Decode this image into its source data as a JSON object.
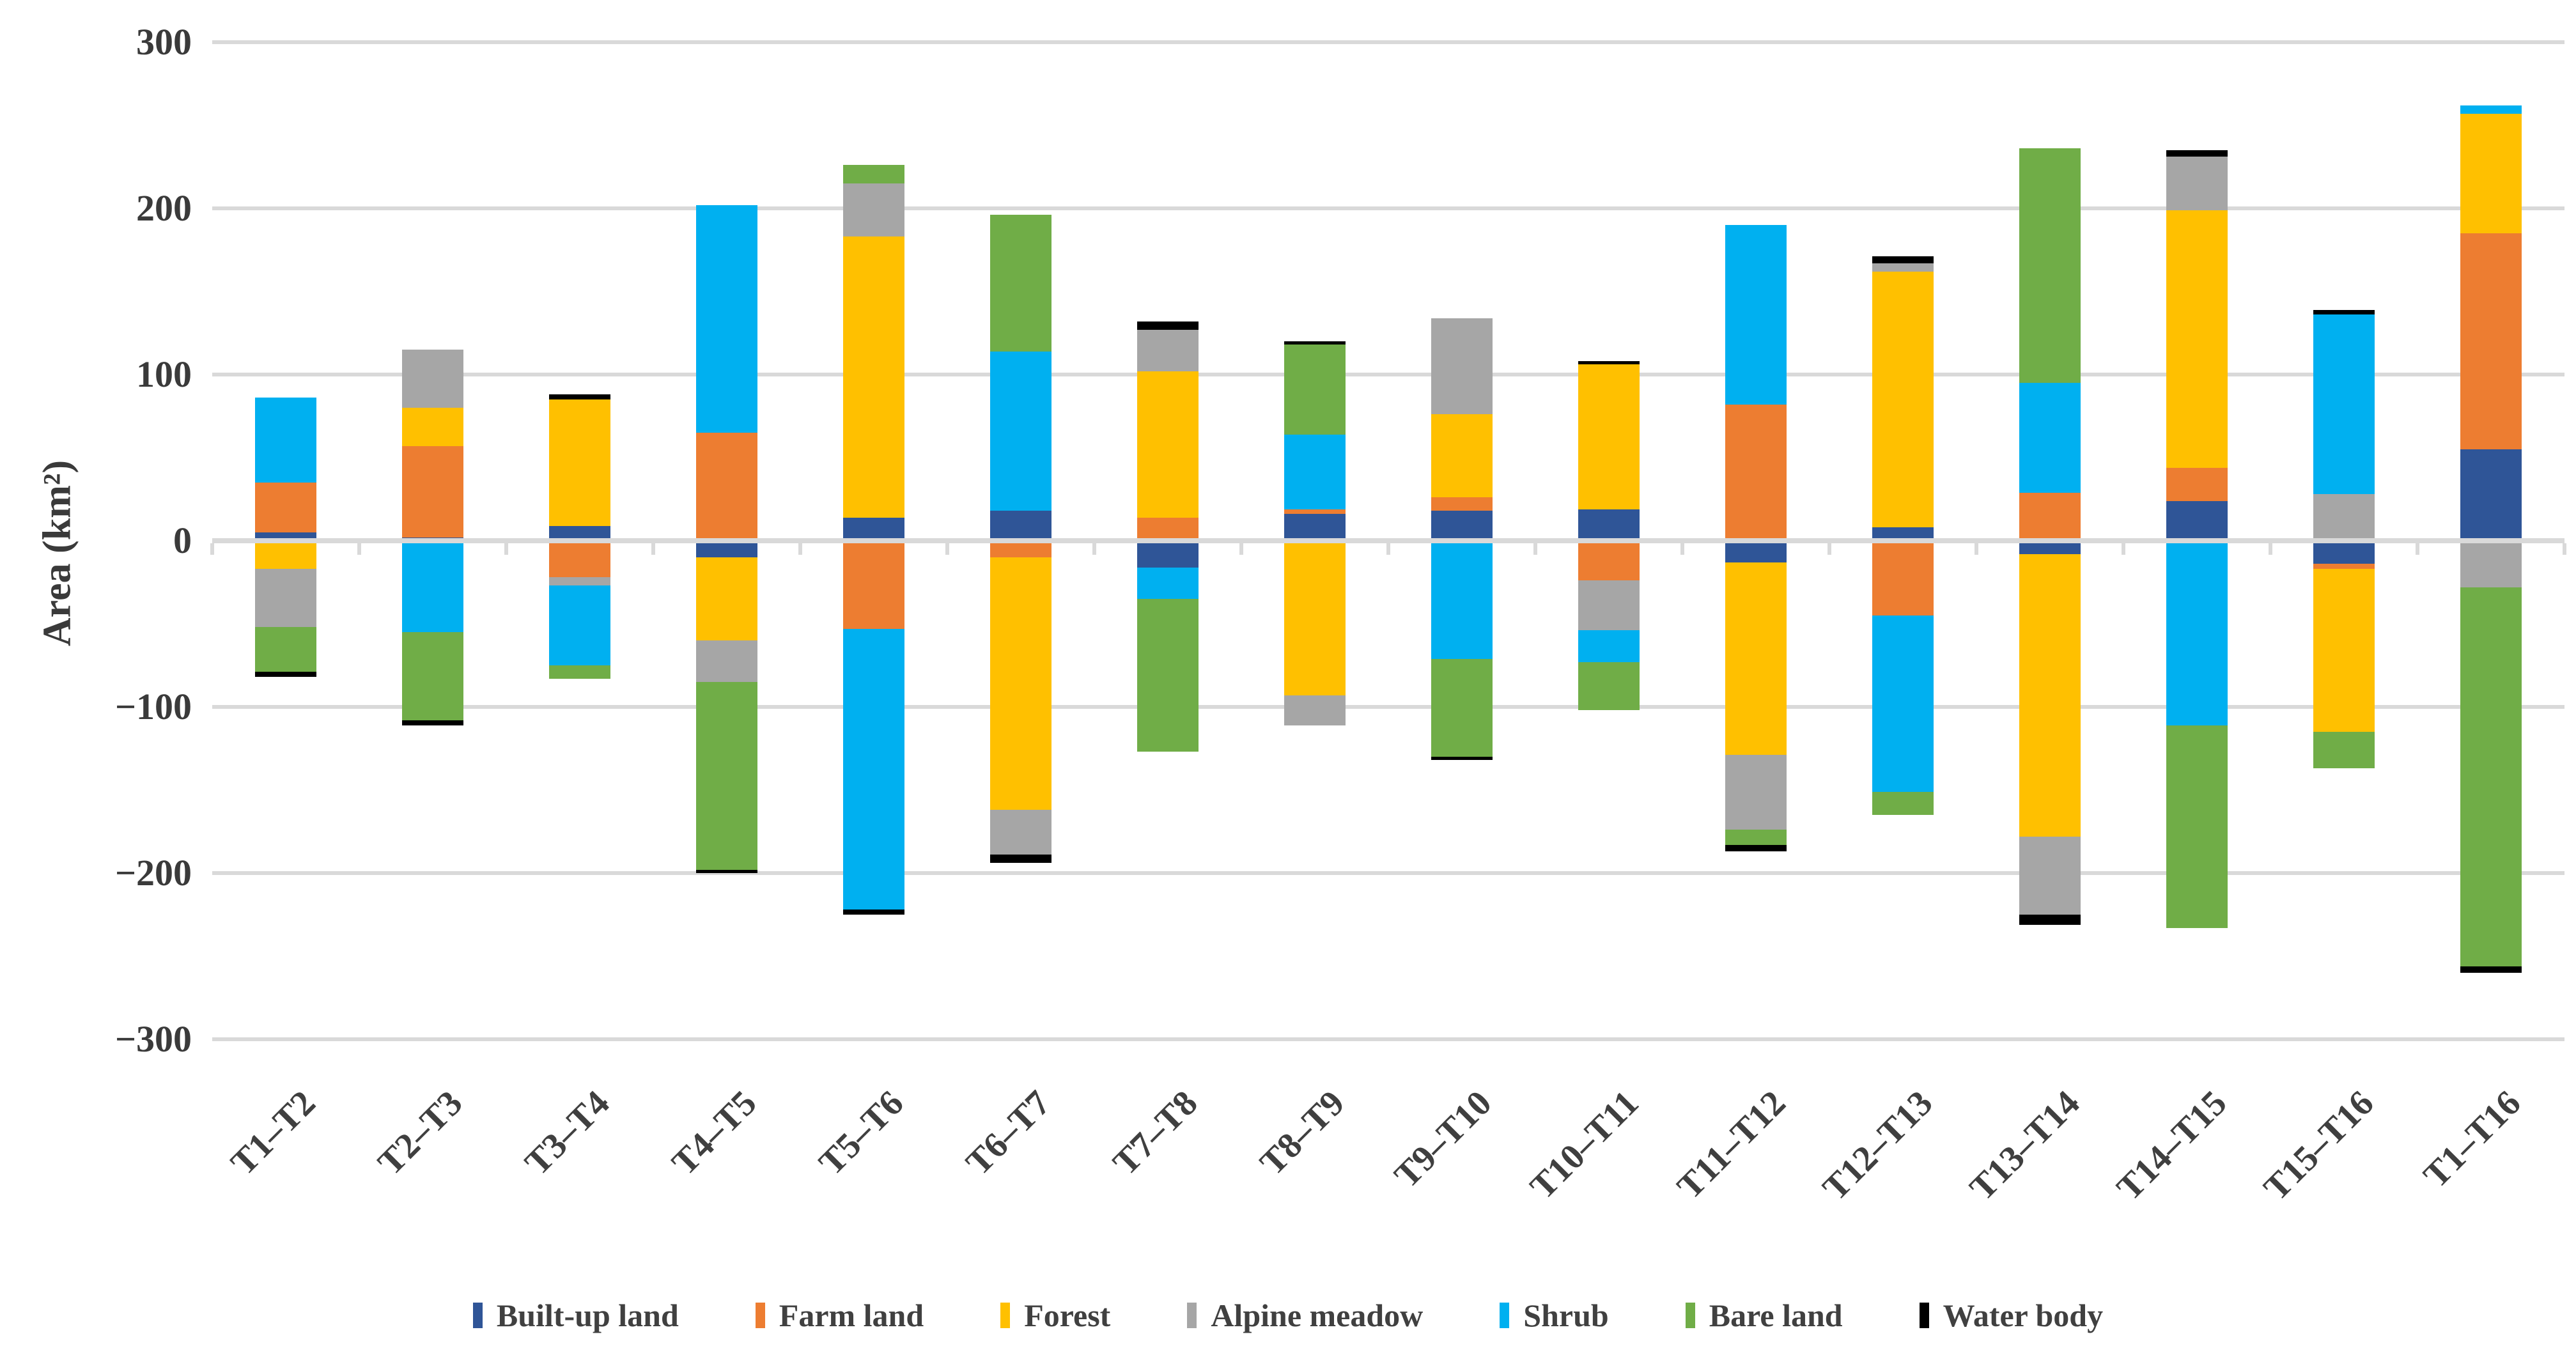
{
  "chart_data": {
    "type": "bar",
    "subtype": "diverging-stacked-column",
    "title": "",
    "xlabel": "",
    "ylabel": "Area (km²)",
    "legend_position": "bottom",
    "grid": true,
    "categories": [
      "T1–T2",
      "T2–T3",
      "T3–T4",
      "T4–T5",
      "T5–T6",
      "T6–T7",
      "T7–T8",
      "T8–T9",
      "T9–T10",
      "T10–T11",
      "T11–T12",
      "T12–T13",
      "T13–T14",
      "T14–T15",
      "T15–T16",
      "T1–T16"
    ],
    "series": [
      {
        "name": "Built-up land",
        "color": "#2F5597",
        "values": [
          5,
          2,
          9,
          -10,
          14,
          18,
          -16,
          16,
          18,
          19,
          -13,
          8,
          -8,
          24,
          -14,
          55
        ]
      },
      {
        "name": "Farm land",
        "color": "#ED7D31",
        "values": [
          30,
          55,
          -22,
          65,
          -53,
          -10,
          14,
          3,
          8,
          -24,
          82,
          -45,
          29,
          20,
          -3,
          130
        ]
      },
      {
        "name": "Forest",
        "color": "#FFC000",
        "values": [
          -17,
          23,
          76,
          -50,
          169,
          -152,
          88,
          -93,
          50,
          87,
          -116,
          154,
          -170,
          155,
          -98,
          72
        ]
      },
      {
        "name": "Alpine meadow",
        "color": "#A6A6A6",
        "values": [
          -35,
          35,
          -5,
          -25,
          32,
          -27,
          25,
          -18,
          58,
          -30,
          -45,
          5,
          -47,
          32,
          28,
          -28
        ]
      },
      {
        "name": "Shrub",
        "color": "#00B0F0",
        "values": [
          51,
          -55,
          -48,
          137,
          -169,
          96,
          -19,
          45,
          -71,
          -19,
          108,
          -106,
          66,
          -111,
          108,
          5
        ]
      },
      {
        "name": "Bare land",
        "color": "#70AD47",
        "values": [
          -27,
          -53,
          -8,
          -113,
          11,
          82,
          -92,
          54,
          -59,
          -29,
          -9,
          -14,
          141,
          -122,
          -22,
          -228
        ]
      },
      {
        "name": "Water body",
        "color": "#000000",
        "values": [
          -3,
          -3,
          3,
          -2,
          -3,
          -5,
          5,
          2,
          -2,
          2,
          -4,
          4,
          -6,
          4,
          3,
          -4
        ]
      }
    ],
    "y_axis": {
      "min": -300,
      "max": 300,
      "step": 100,
      "tick_labels": [
        "300",
        "200",
        "100",
        "0",
        "−100",
        "−200",
        "−300"
      ],
      "tick_values": [
        300,
        200,
        100,
        0,
        -100,
        -200,
        -300
      ]
    }
  }
}
